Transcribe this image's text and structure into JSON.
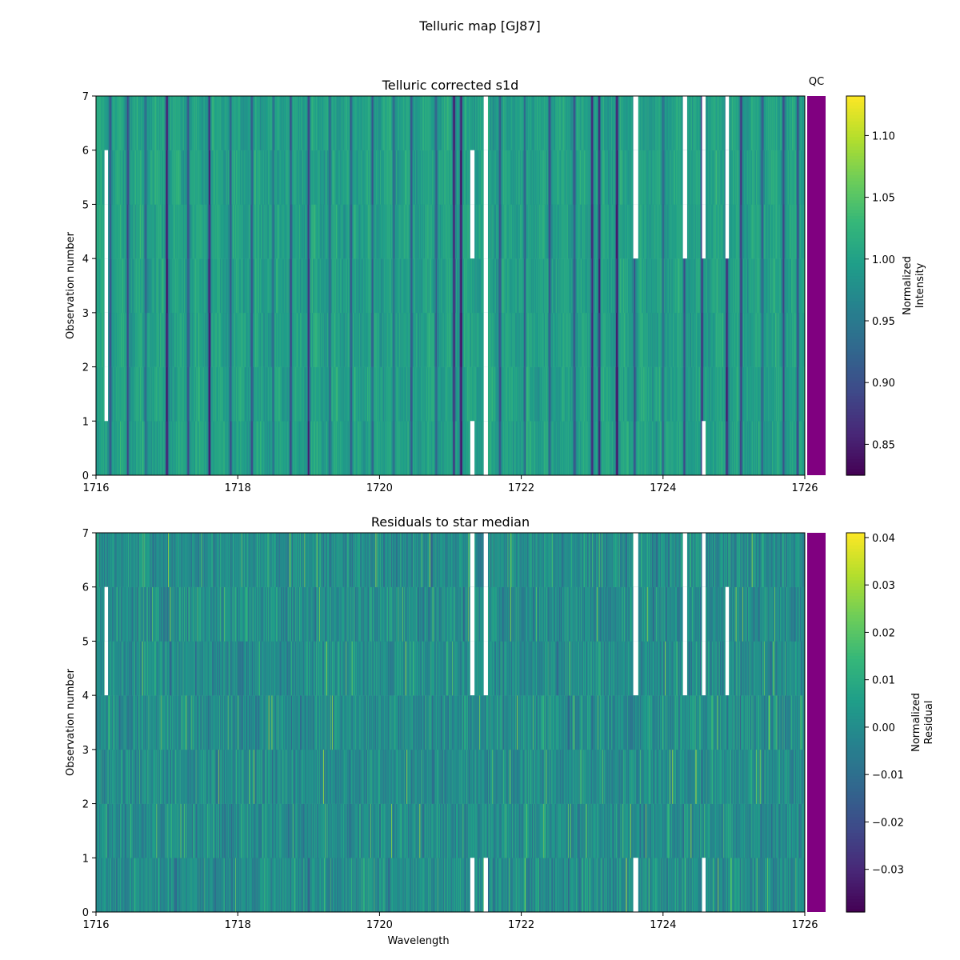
{
  "figure": {
    "title": "Telluric map [GJ87]"
  },
  "chart_data": [
    {
      "type": "heatmap",
      "title": "Telluric corrected s1d",
      "xlabel": "",
      "ylabel": "Observation number",
      "xlim": [
        1716,
        1726
      ],
      "ylim": [
        0,
        7
      ],
      "xticks": [
        "1716",
        "1718",
        "1720",
        "1722",
        "1724",
        "1726"
      ],
      "yticks": [
        "0",
        "1",
        "2",
        "3",
        "4",
        "5",
        "6",
        "7"
      ],
      "colorbar": {
        "label_lines": [
          "Normalized",
          "Intensity"
        ],
        "range": [
          0.825,
          1.132
        ],
        "ticks": [
          "0.85",
          "0.90",
          "0.95",
          "1.00",
          "1.05",
          "1.10"
        ],
        "tick_values": [
          0.85,
          0.9,
          0.95,
          1.0,
          1.05,
          1.1
        ],
        "colormap": "viridis"
      },
      "qc_strip": {
        "label": "QC",
        "color": "#800080"
      },
      "absorption_lines": [
        [
          1716.2,
          0.91
        ],
        [
          1716.45,
          0.89
        ],
        [
          1716.7,
          0.93
        ],
        [
          1717.0,
          0.84
        ],
        [
          1717.3,
          0.9
        ],
        [
          1717.6,
          0.85
        ],
        [
          1717.9,
          0.91
        ],
        [
          1718.2,
          0.9
        ],
        [
          1718.5,
          0.93
        ],
        [
          1718.75,
          0.89
        ],
        [
          1719.0,
          0.86
        ],
        [
          1719.3,
          0.92
        ],
        [
          1719.6,
          0.9
        ],
        [
          1719.9,
          0.91
        ],
        [
          1720.2,
          0.93
        ],
        [
          1720.45,
          0.9
        ],
        [
          1720.8,
          0.92
        ],
        [
          1721.05,
          0.85
        ],
        [
          1721.15,
          0.83
        ],
        [
          1721.7,
          0.9
        ],
        [
          1722.05,
          0.91
        ],
        [
          1722.4,
          0.9
        ],
        [
          1722.75,
          0.91
        ],
        [
          1723.0,
          0.86
        ],
        [
          1723.1,
          0.85
        ],
        [
          1723.35,
          0.83
        ],
        [
          1723.6,
          0.91
        ],
        [
          1724.0,
          0.92
        ],
        [
          1724.3,
          0.89
        ],
        [
          1724.55,
          0.86
        ],
        [
          1724.9,
          0.85
        ],
        [
          1725.1,
          0.87
        ],
        [
          1725.4,
          0.92
        ],
        [
          1725.7,
          0.9
        ],
        [
          1725.9,
          0.89
        ]
      ],
      "missing_columns": [
        {
          "x": [
            1716.12,
            1716.17
          ],
          "rows": [
            1,
            2,
            3,
            4,
            5
          ]
        },
        {
          "x": [
            1721.28,
            1721.34
          ],
          "rows": [
            0,
            4,
            5
          ]
        },
        {
          "x": [
            1721.47,
            1721.53
          ],
          "rows": [
            0,
            1,
            2,
            3,
            4,
            5,
            6
          ]
        },
        {
          "x": [
            1723.58,
            1723.65
          ],
          "rows": [
            4,
            5,
            6
          ]
        },
        {
          "x": [
            1724.28,
            1724.34
          ],
          "rows": [
            4,
            5,
            6
          ]
        },
        {
          "x": [
            1724.55,
            1724.6
          ],
          "rows": [
            0,
            4,
            5,
            6
          ]
        },
        {
          "x": [
            1724.88,
            1724.93
          ],
          "rows": [
            4,
            5,
            6
          ]
        },
        {
          "x": [
            1725.08,
            1725.11
          ],
          "rows": []
        }
      ]
    },
    {
      "type": "heatmap",
      "title": "Residuals to star median",
      "xlabel": "Wavelength",
      "ylabel": "Observation number",
      "xlim": [
        1716,
        1726
      ],
      "ylim": [
        0,
        7
      ],
      "xticks": [
        "1716",
        "1718",
        "1720",
        "1722",
        "1724",
        "1726"
      ],
      "yticks": [
        "0",
        "1",
        "2",
        "3",
        "4",
        "5",
        "6",
        "7"
      ],
      "colorbar": {
        "label_lines": [
          "Normalized",
          "Residual"
        ],
        "range": [
          -0.039,
          0.041
        ],
        "ticks": [
          "0.04",
          "0.03",
          "0.02",
          "0.01",
          "0.00",
          "−0.01",
          "−0.02",
          "−0.03"
        ],
        "tick_values": [
          0.04,
          0.03,
          0.02,
          0.01,
          0.0,
          -0.01,
          -0.02,
          -0.03
        ],
        "colormap": "viridis"
      },
      "qc_strip": {
        "color": "#800080"
      },
      "missing_columns": [
        {
          "x": [
            1716.12,
            1716.17
          ],
          "rows": [
            4,
            5
          ]
        },
        {
          "x": [
            1721.28,
            1721.34
          ],
          "rows": [
            0,
            4,
            5,
            6
          ]
        },
        {
          "x": [
            1721.47,
            1721.53
          ],
          "rows": [
            0,
            4,
            5,
            6
          ]
        },
        {
          "x": [
            1723.58,
            1723.65
          ],
          "rows": [
            0,
            4,
            5,
            6
          ]
        },
        {
          "x": [
            1724.28,
            1724.34
          ],
          "rows": [
            4,
            5,
            6
          ]
        },
        {
          "x": [
            1724.55,
            1724.6
          ],
          "rows": [
            0,
            4,
            5,
            6
          ]
        },
        {
          "x": [
            1724.88,
            1724.93
          ],
          "rows": [
            4,
            5
          ]
        }
      ]
    }
  ]
}
